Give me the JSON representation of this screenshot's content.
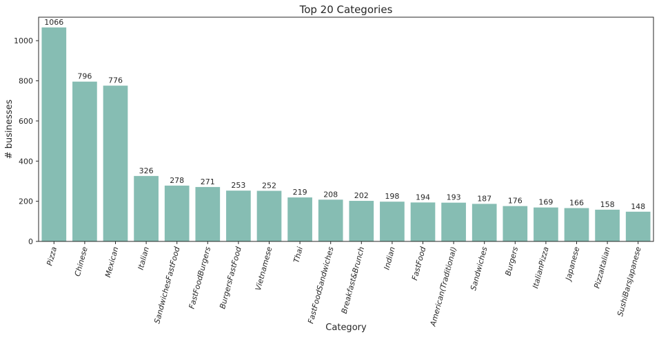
{
  "chart_data": {
    "type": "bar",
    "title": "Top 20 Categories",
    "xlabel": "Category",
    "ylabel": "# businesses",
    "ylim": [
      0,
      1117
    ],
    "yticks": [
      0,
      200,
      400,
      600,
      800,
      1000
    ],
    "grid": false,
    "bar_color": "#86bdb3",
    "categories": [
      "Pizza",
      "Chinese",
      "Mexican",
      "Italian",
      "SandwichesFastFood",
      "FastFoodBurgers",
      "BurgersFastFood",
      "Vietnamese",
      "Thai",
      "FastFoodSandwiches",
      "Breakfast&Brunch",
      "Indian",
      "FastFood",
      "American(Traditional)",
      "Sandwiches",
      "Burgers",
      "ItalianPizza",
      "Japanese",
      "PizzaItalian",
      "SushiBarsJapanese"
    ],
    "values": [
      1066,
      796,
      776,
      326,
      278,
      271,
      253,
      252,
      219,
      208,
      202,
      198,
      194,
      193,
      187,
      176,
      169,
      166,
      158,
      148
    ]
  }
}
